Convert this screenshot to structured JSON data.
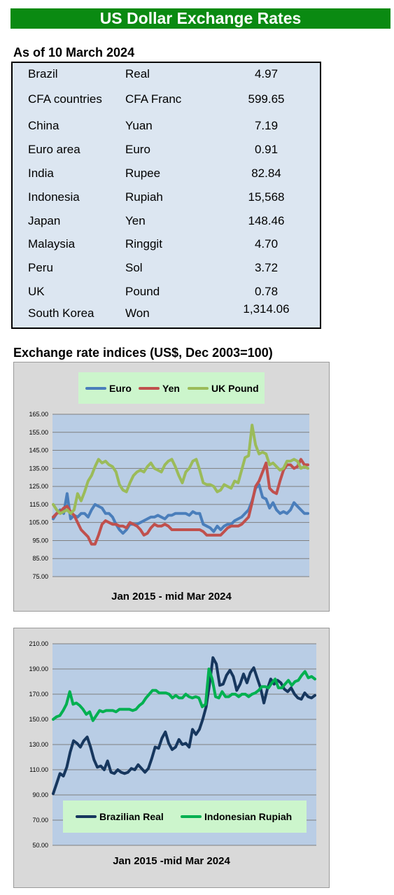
{
  "header": {
    "title": "US Dollar Exchange Rates"
  },
  "rates": {
    "as_of": "As of 10 March 2024",
    "rows": [
      {
        "country": "Brazil",
        "currency": "Real",
        "value": "4.97"
      },
      {
        "country": "CFA countries",
        "currency": "CFA Franc",
        "value": "599.65"
      },
      {
        "country": "China",
        "currency": "Yuan",
        "value": "7.19"
      },
      {
        "country": "Euro area",
        "currency": "Euro",
        "value": "0.91"
      },
      {
        "country": "India",
        "currency": "Rupee",
        "value": "82.84"
      },
      {
        "country": "Indonesia",
        "currency": "Rupiah",
        "value": "15,568"
      },
      {
        "country": "Japan",
        "currency": "Yen",
        "value": "148.46"
      },
      {
        "country": "Malaysia",
        "currency": "Ringgit",
        "value": "4.70"
      },
      {
        "country": "Peru",
        "currency": "Sol",
        "value": "3.72"
      },
      {
        "country": "UK",
        "currency": "Pound",
        "value": "0.78"
      },
      {
        "country": "South Korea",
        "currency": "Won",
        "value": "1,314.06"
      }
    ]
  },
  "indices": {
    "heading": "Exchange rate indices (US$, Dec 2003=100)"
  },
  "chart_data": [
    {
      "type": "line",
      "xlabel": "Jan 2015 - mid Mar 2024",
      "ylim": [
        75,
        165
      ],
      "yticks": [
        "75.00",
        "85.00",
        "95.00",
        "105.00",
        "115.00",
        "125.00",
        "135.00",
        "145.00",
        "155.00",
        "165.00"
      ],
      "legend_position": "top",
      "grid": true,
      "series": [
        {
          "name": "Euro",
          "color": "#4a7ebb",
          "values": [
            107,
            110,
            112,
            110,
            121,
            107,
            109,
            108,
            110,
            110,
            108,
            112,
            115,
            114,
            113,
            110,
            110,
            108,
            104,
            101,
            99,
            101,
            104,
            104,
            104,
            105,
            106,
            107,
            108,
            108,
            109,
            108,
            107,
            109,
            109,
            110,
            110,
            110,
            110,
            109,
            111,
            110,
            110,
            104,
            103,
            102,
            100,
            103,
            101,
            103,
            104,
            104,
            106,
            107,
            108,
            110,
            112,
            117,
            124,
            126,
            119,
            118,
            113,
            116,
            112,
            110,
            111,
            110,
            112,
            116,
            114,
            112,
            110,
            110
          ]
        },
        {
          "name": "Yen",
          "color": "#c0504d",
          "values": [
            108,
            110,
            111,
            113,
            114,
            111,
            109,
            105,
            101,
            99,
            97,
            93,
            93,
            98,
            104,
            106,
            105,
            104,
            104,
            103,
            103,
            102,
            105,
            104,
            103,
            101,
            98,
            99,
            102,
            104,
            103,
            103,
            104,
            103,
            101,
            101,
            101,
            101,
            101,
            101,
            101,
            101,
            101,
            100,
            98,
            98,
            98,
            98,
            98,
            100,
            102,
            103,
            103,
            103,
            104,
            106,
            108,
            116,
            125,
            128,
            133,
            138,
            124,
            122,
            121,
            128,
            134,
            137,
            137,
            135,
            136,
            140,
            137,
            137
          ]
        },
        {
          "name": "UK Pound",
          "color": "#9bbb59",
          "values": [
            115,
            112,
            110,
            111,
            112,
            110,
            112,
            121,
            117,
            122,
            128,
            131,
            136,
            140,
            138,
            139,
            137,
            136,
            133,
            126,
            123,
            122,
            127,
            131,
            133,
            134,
            133,
            136,
            138,
            135,
            134,
            133,
            137,
            139,
            140,
            136,
            131,
            127,
            133,
            135,
            139,
            140,
            134,
            127,
            126,
            126,
            125,
            122,
            123,
            126,
            125,
            124,
            128,
            127,
            134,
            141,
            142,
            159,
            148,
            143,
            144,
            143,
            137,
            138,
            136,
            134,
            135,
            139,
            139,
            140,
            139,
            135,
            136,
            135
          ]
        }
      ]
    },
    {
      "type": "line",
      "xlabel": "Jan 2015 -mid Mar 2024",
      "ylim": [
        50,
        210
      ],
      "yticks": [
        "50.00",
        "70.00",
        "90.00",
        "110.00",
        "130.00",
        "150.00",
        "170.00",
        "190.00",
        "210.00"
      ],
      "legend_position": "bottom",
      "grid": true,
      "series": [
        {
          "name": "Brazilian Real",
          "color": "#17375e",
          "values": [
            91,
            99,
            107,
            105,
            112,
            124,
            133,
            131,
            128,
            133,
            136,
            128,
            118,
            112,
            113,
            110,
            117,
            108,
            107,
            110,
            108,
            107,
            108,
            111,
            110,
            114,
            111,
            108,
            111,
            119,
            128,
            127,
            135,
            140,
            131,
            126,
            128,
            134,
            130,
            131,
            128,
            142,
            138,
            142,
            150,
            160,
            178,
            199,
            194,
            177,
            178,
            185,
            189,
            184,
            173,
            178,
            186,
            179,
            187,
            191,
            183,
            175,
            163,
            174,
            182,
            178,
            181,
            179,
            174,
            172,
            175,
            170,
            167,
            166,
            171,
            168,
            167,
            169
          ]
        },
        {
          "name": "Indonesian Rupiah",
          "color": "#00b050",
          "values": [
            150,
            152,
            153,
            157,
            162,
            172,
            162,
            163,
            161,
            158,
            154,
            156,
            149,
            153,
            157,
            156,
            157,
            157,
            157,
            156,
            158,
            158,
            158,
            158,
            157,
            158,
            161,
            163,
            167,
            170,
            173,
            173,
            171,
            171,
            171,
            170,
            167,
            169,
            167,
            167,
            170,
            168,
            167,
            168,
            167,
            160,
            162,
            190,
            182,
            168,
            167,
            172,
            168,
            168,
            170,
            170,
            168,
            170,
            170,
            168,
            170,
            171,
            173,
            176,
            176,
            175,
            179,
            182,
            175,
            175,
            178,
            181,
            177,
            180,
            181,
            185,
            188,
            183,
            184,
            182
          ]
        }
      ]
    }
  ]
}
